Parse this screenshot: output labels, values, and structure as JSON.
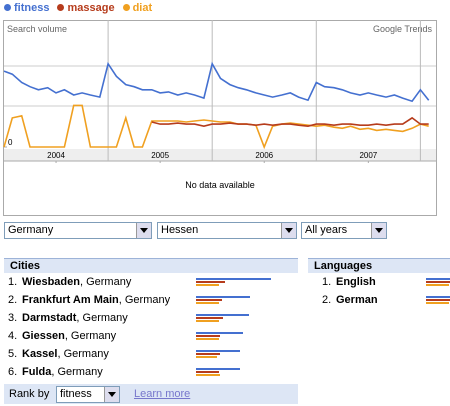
{
  "chart_data": {
    "type": "line",
    "annotations": [
      "Search volume",
      "Google Trends"
    ],
    "no_data": "No data available",
    "x": [
      2004,
      2004.08,
      2004.17,
      2004.25,
      2004.33,
      2004.42,
      2004.5,
      2004.58,
      2004.67,
      2004.75,
      2004.83,
      2004.92,
      2005,
      2005.08,
      2005.17,
      2005.25,
      2005.33,
      2005.42,
      2005.5,
      2005.58,
      2005.67,
      2005.75,
      2005.83,
      2005.92,
      2006,
      2006.08,
      2006.17,
      2006.25,
      2006.33,
      2006.42,
      2006.5,
      2006.58,
      2006.67,
      2006.75,
      2006.83,
      2006.92,
      2007,
      2007.08,
      2007.17,
      2007.25,
      2007.33,
      2007.42,
      2007.5,
      2007.58,
      2007.67,
      2007.75,
      2007.83,
      2007.92,
      2008,
      2008.08
    ],
    "series": [
      {
        "name": "fitness",
        "color": "#4470d0",
        "values": [
          73,
          70,
          62,
          58,
          55,
          57,
          52,
          55,
          50,
          52,
          50,
          48,
          80,
          68,
          60,
          58,
          55,
          55,
          52,
          53,
          50,
          52,
          50,
          47,
          80,
          66,
          60,
          57,
          55,
          52,
          50,
          48,
          50,
          52,
          48,
          45,
          62,
          58,
          57,
          55,
          52,
          50,
          52,
          50,
          48,
          50,
          47,
          44,
          55,
          45
        ]
      },
      {
        "name": "massage",
        "color": "#b63c1c",
        "values": [
          null,
          null,
          null,
          null,
          null,
          null,
          null,
          null,
          null,
          null,
          null,
          null,
          null,
          null,
          null,
          null,
          null,
          24,
          22,
          22,
          23,
          22,
          22,
          20,
          22,
          22,
          23,
          22,
          22,
          21,
          22,
          21,
          22,
          22,
          21,
          20,
          22,
          22,
          21,
          22,
          22,
          21,
          21,
          22,
          21,
          22,
          22,
          28,
          22,
          22
        ]
      },
      {
        "name": "diat",
        "color": "#f0a020",
        "values": [
          0,
          28,
          30,
          0,
          0,
          0,
          0,
          0,
          40,
          40,
          0,
          0,
          0,
          0,
          28,
          0,
          0,
          25,
          25,
          25,
          25,
          24,
          25,
          26,
          25,
          24,
          24,
          22,
          22,
          21,
          0,
          20,
          22,
          23,
          22,
          21,
          20,
          21,
          19,
          18,
          20,
          17,
          18,
          16,
          17,
          16,
          15,
          18,
          22,
          20
        ]
      }
    ],
    "xlim": [
      2004,
      2008.15
    ],
    "xticks": [
      {
        "value": 2004.5,
        "label": "2004"
      },
      {
        "value": 2005.5,
        "label": "2005"
      },
      {
        "value": 2006.5,
        "label": "2006"
      },
      {
        "value": 2007.5,
        "label": "2007"
      }
    ],
    "ylim": [
      0,
      100
    ],
    "yticks": [
      0
    ]
  },
  "filters": {
    "country": "Germany",
    "region": "Hessen",
    "period": "All years"
  },
  "cities": {
    "header": "Cities",
    "rows": [
      {
        "rank": "1.",
        "name": "Wiesbaden",
        "country": ", Germany",
        "values": [
          100,
          38,
          30
        ]
      },
      {
        "rank": "2.",
        "name": "Frankfurt Am Main",
        "country": ", Germany",
        "values": [
          72,
          34,
          30
        ]
      },
      {
        "rank": "3.",
        "name": "Darmstadt",
        "country": ", Germany",
        "values": [
          70,
          36,
          30
        ]
      },
      {
        "rank": "4.",
        "name": "Giessen",
        "country": ", Germany",
        "values": [
          63,
          32,
          30
        ]
      },
      {
        "rank": "5.",
        "name": "Kassel",
        "country": ", Germany",
        "values": [
          58,
          32,
          28
        ]
      },
      {
        "rank": "6.",
        "name": "Fulda",
        "country": ", Germany",
        "values": [
          58,
          30,
          32
        ]
      }
    ]
  },
  "languages": {
    "header": "Languages",
    "rows": [
      {
        "rank": "1.",
        "name": "English",
        "values": [
          100,
          40,
          30
        ]
      },
      {
        "rank": "2.",
        "name": "German",
        "values": [
          100,
          40,
          30
        ]
      }
    ]
  },
  "rank_by": {
    "label": "Rank by",
    "value": "fitness",
    "link": "Learn more"
  }
}
